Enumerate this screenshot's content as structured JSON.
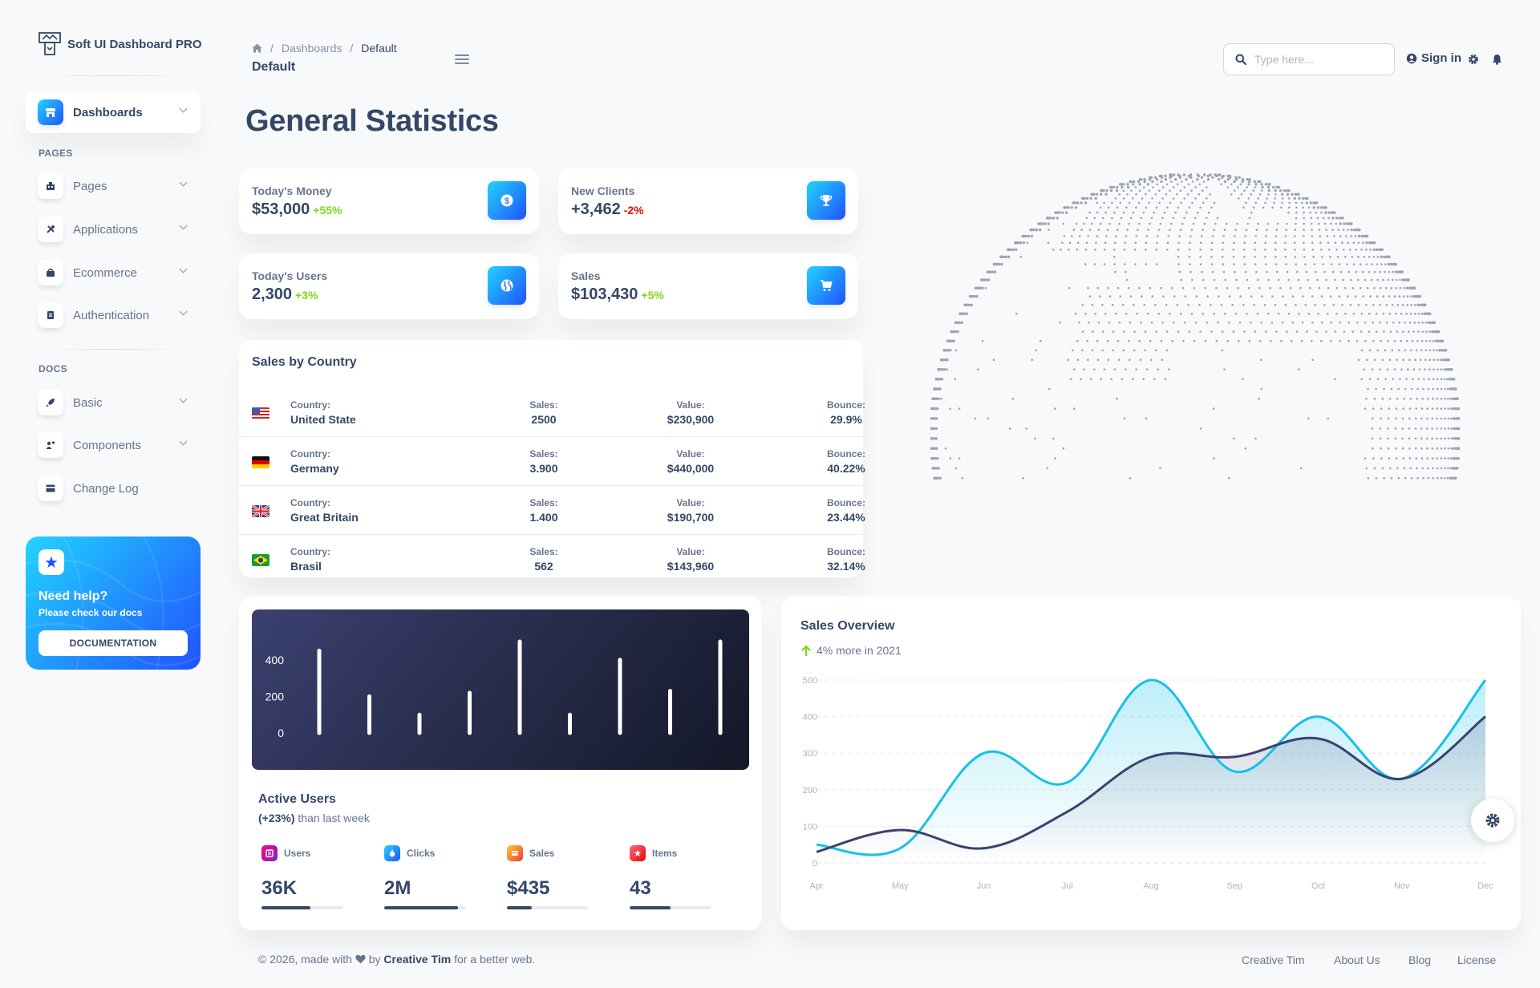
{
  "brand": {
    "name": "Soft UI Dashboard PRO"
  },
  "sidebar": {
    "active": {
      "label": "Dashboards"
    },
    "pages_heading": "PAGES",
    "pages": [
      {
        "label": "Pages"
      },
      {
        "label": "Applications"
      },
      {
        "label": "Ecommerce"
      },
      {
        "label": "Authentication"
      }
    ],
    "docs_heading": "DOCS",
    "docs": [
      {
        "label": "Basic"
      },
      {
        "label": "Components"
      },
      {
        "label": "Change Log"
      }
    ],
    "help": {
      "title": "Need help?",
      "subtitle": "Please check our docs",
      "button": "DOCUMENTATION"
    }
  },
  "header": {
    "breadcrumb": [
      "Dashboards",
      "Default"
    ],
    "title": "Default",
    "search_placeholder": "Type here...",
    "signin": "Sign in"
  },
  "main": {
    "title": "General Statistics"
  },
  "stats": [
    {
      "label": "Today's Money",
      "value": "$53,000",
      "change": "+55%",
      "trend": "up",
      "icon": "dollar-icon"
    },
    {
      "label": "New Clients",
      "value": "+3,462",
      "change": "-2%",
      "trend": "down",
      "icon": "trophy-icon"
    },
    {
      "label": "Today's Users",
      "value": "2,300",
      "change": "+3%",
      "trend": "up",
      "icon": "globe-icon"
    },
    {
      "label": "Sales",
      "value": "$103,430",
      "change": "+5%",
      "trend": "up",
      "icon": "cart-icon"
    }
  ],
  "sales_by_country": {
    "title": "Sales by Country",
    "headers": {
      "country": "Country:",
      "sales": "Sales:",
      "value": "Value:",
      "bounce": "Bounce:"
    },
    "rows": [
      {
        "country": "United State",
        "sales": "2500",
        "value": "$230,900",
        "bounce": "29.9%",
        "flag": "us"
      },
      {
        "country": "Germany",
        "sales": "3.900",
        "value": "$440,000",
        "bounce": "40.22%",
        "flag": "de"
      },
      {
        "country": "Great Britain",
        "sales": "1.400",
        "value": "$190,700",
        "bounce": "23.44%",
        "flag": "gb"
      },
      {
        "country": "Brasil",
        "sales": "562",
        "value": "$143,960",
        "bounce": "32.14%",
        "flag": "br"
      }
    ]
  },
  "active_users": {
    "title": "Active Users",
    "subtitle_bold": "(+23%)",
    "subtitle_rest": " than last week",
    "kpis": [
      {
        "label": "Users",
        "value": "36K",
        "progress": 0.6,
        "color": "#7928ca"
      },
      {
        "label": "Clicks",
        "value": "2M",
        "progress": 0.9,
        "color": "#2152ff"
      },
      {
        "label": "Sales",
        "value": "$435",
        "progress": 0.3,
        "color": "#f53939"
      },
      {
        "label": "Items",
        "value": "43",
        "progress": 0.5,
        "color": "#ea0606"
      }
    ]
  },
  "chart_data": [
    {
      "type": "bar",
      "title": "",
      "values": [
        450,
        200,
        100,
        220,
        500,
        100,
        400,
        230,
        500
      ],
      "yticks": [
        0,
        200,
        400
      ],
      "ylim": [
        0,
        500
      ]
    },
    {
      "type": "line",
      "title": "Sales Overview",
      "subtitle": "4% more in 2021",
      "categories": [
        "Apr",
        "May",
        "Jun",
        "Jul",
        "Aug",
        "Sep",
        "Oct",
        "Nov",
        "Dec"
      ],
      "series": [
        {
          "name": "",
          "color": "#17c1e8",
          "values": [
            50,
            40,
            300,
            220,
            500,
            250,
            400,
            230,
            500
          ]
        },
        {
          "name": "",
          "color": "#3a416f",
          "values": [
            30,
            90,
            40,
            140,
            290,
            290,
            340,
            230,
            400
          ]
        }
      ],
      "yticks": [
        0,
        100,
        200,
        300,
        400,
        500
      ],
      "ylim": [
        0,
        500
      ],
      "grid": true
    }
  ],
  "footer": {
    "prefix": "© 2026, made with",
    "by": "by",
    "author": "Creative Tim",
    "suffix": "for a better web.",
    "links": [
      "Creative Tim",
      "About Us",
      "Blog",
      "License"
    ]
  }
}
